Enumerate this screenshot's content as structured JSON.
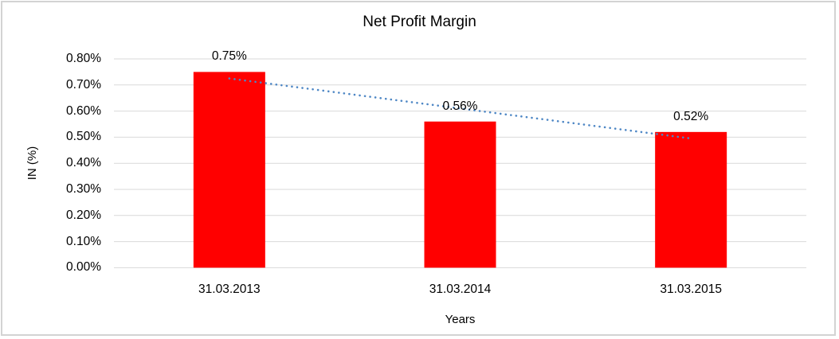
{
  "window": {
    "background_color": "#FFFFFF",
    "frame_border_color": "#D3D3D3"
  },
  "chart_data": {
    "type": "bar",
    "title": "Net Profit Margin",
    "xlabel": "Years",
    "ylabel": "IN (%)",
    "categories": [
      "31.03.2013",
      "31.03.2014",
      "31.03.2015"
    ],
    "values": [
      0.75,
      0.56,
      0.52
    ],
    "data_labels": [
      "0.75%",
      "0.56%",
      "0.52%"
    ],
    "bar_color": "#FF0000",
    "ylim": [
      0,
      0.8
    ],
    "ytick_step": 0.1,
    "ytick_labels": [
      "0.00%",
      "0.10%",
      "0.20%",
      "0.30%",
      "0.40%",
      "0.50%",
      "0.60%",
      "0.70%",
      "0.80%"
    ],
    "grid": true,
    "gridline_color": "#D9D9D9",
    "legend": "none",
    "trendline": {
      "type": "linear",
      "style": "dotted",
      "color": "#4E87C5",
      "points": [
        0.725,
        0.61,
        0.495
      ]
    }
  }
}
